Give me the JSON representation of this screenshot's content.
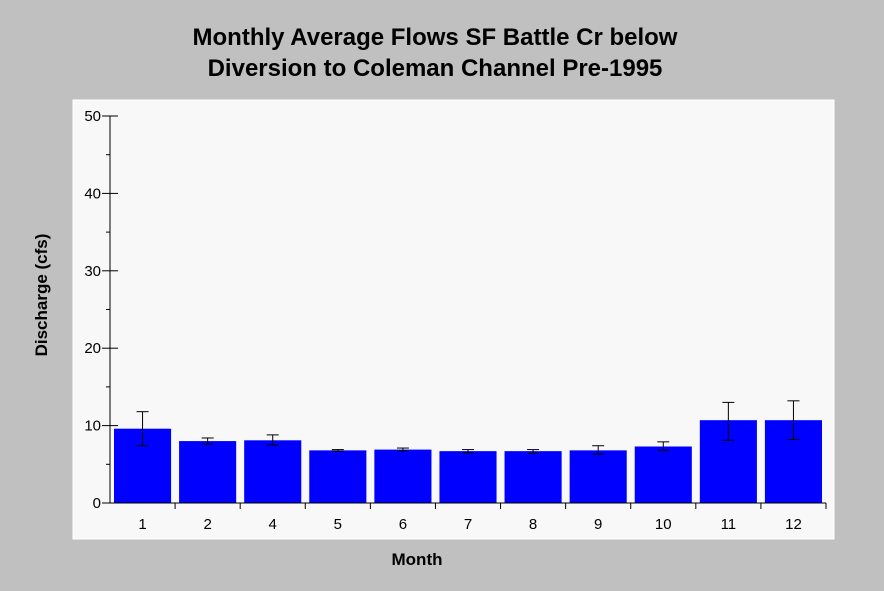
{
  "chart_data": {
    "type": "bar",
    "title_lines": [
      "Monthly Average Flows SF Battle Cr below",
      "Diversion to Coleman Channel Pre-1995"
    ],
    "xlabel": "Month",
    "ylabel": "Discharge (cfs)",
    "ylim": [
      0,
      50
    ],
    "y_ticks": [
      0,
      10,
      20,
      30,
      40,
      50
    ],
    "y_minor_step": 5,
    "categories": [
      "1",
      "2",
      "4",
      "5",
      "6",
      "7",
      "8",
      "9",
      "10",
      "11",
      "12"
    ],
    "values": [
      9.6,
      8.0,
      8.1,
      6.8,
      6.9,
      6.7,
      6.7,
      6.8,
      7.3,
      10.7,
      10.7
    ],
    "error_low": [
      7.4,
      7.6,
      7.5,
      6.7,
      6.7,
      6.5,
      6.4,
      6.3,
      6.8,
      8.1,
      8.2
    ],
    "error_high": [
      11.8,
      8.4,
      8.8,
      6.9,
      7.1,
      6.9,
      6.9,
      7.4,
      7.9,
      13.0,
      13.2
    ],
    "bar_color": "#0000ff",
    "plot_background": "#f8f8f8",
    "grid": false,
    "legend": "none"
  }
}
